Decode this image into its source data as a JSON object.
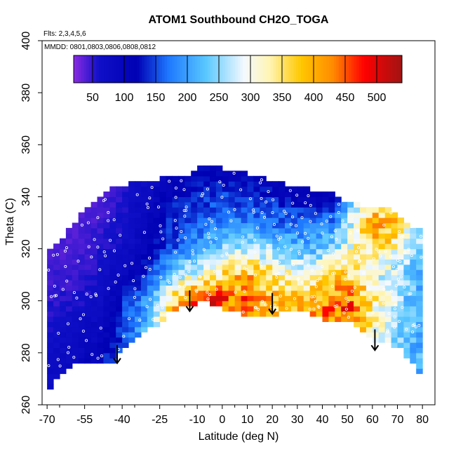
{
  "chart_data": {
    "type": "heatmap",
    "title": "ATOM1 Southbound CH2O_TOGA",
    "annotations": [
      "Flts: 2,3,4,5,6",
      "MMDD: 0801,0803,0806,0808,0812"
    ],
    "xlabel": "Latitude (deg N)",
    "ylabel": "Theta (C)",
    "xlim": [
      -72,
      85
    ],
    "ylim": [
      260,
      400
    ],
    "x_ticks": [
      -70,
      -55,
      -40,
      -25,
      -10,
      0,
      10,
      20,
      30,
      40,
      50,
      60,
      70,
      80
    ],
    "x_tick_labels": [
      "-70",
      "-55",
      "-40",
      "-25",
      "-10",
      "0",
      "10",
      "20",
      "30",
      "40",
      "50",
      "60",
      "70",
      "80"
    ],
    "y_ticks": [
      260,
      280,
      300,
      320,
      340,
      360,
      380,
      400
    ],
    "y_tick_labels": [
      "260",
      "280",
      "300",
      "320",
      "340",
      "360",
      "380",
      "400"
    ],
    "colorbar": {
      "range": [
        20,
        540
      ],
      "ticks": [
        50,
        100,
        150,
        200,
        250,
        300,
        350,
        400,
        450,
        500
      ],
      "tick_labels": [
        "50",
        "100",
        "150",
        "200",
        "250",
        "300",
        "350",
        "400",
        "450",
        "500"
      ],
      "stops": [
        {
          "value": 20,
          "color": "#8a2be2"
        },
        {
          "value": 60,
          "color": "#1010c8"
        },
        {
          "value": 120,
          "color": "#0000b4"
        },
        {
          "value": 170,
          "color": "#1e78ff"
        },
        {
          "value": 230,
          "color": "#5ac8ff"
        },
        {
          "value": 290,
          "color": "#f4f9ff"
        },
        {
          "value": 330,
          "color": "#fff5b4"
        },
        {
          "value": 380,
          "color": "#ffc800"
        },
        {
          "value": 430,
          "color": "#ff8c00"
        },
        {
          "value": 480,
          "color": "#ff0000"
        },
        {
          "value": 540,
          "color": "#a01414"
        }
      ]
    },
    "field": {
      "lat": [
        -70,
        -65,
        -60,
        -55,
        -50,
        -45,
        -40,
        -35,
        -30,
        -25,
        -20,
        -15,
        -10,
        -5,
        0,
        5,
        10,
        15,
        20,
        25,
        30,
        35,
        40,
        45,
        50,
        55,
        60,
        65,
        70,
        75,
        80
      ],
      "theta_bottom": [
        265,
        272,
        276,
        278,
        276,
        276,
        282,
        286,
        289,
        292,
        297,
        298,
        300,
        300,
        298,
        296,
        295,
        295,
        295,
        296,
        296,
        296,
        294,
        292,
        293,
        290,
        285,
        285,
        283,
        278,
        272
      ],
      "theta_top": [
        318,
        322,
        328,
        334,
        338,
        342,
        343,
        345,
        346,
        346,
        347,
        347,
        350,
        351,
        350,
        349,
        348,
        347,
        345,
        344,
        343,
        342,
        341,
        340,
        337,
        336,
        335,
        335,
        333,
        328,
        326
      ],
      "theta_levels": [
        270,
        280,
        290,
        300,
        310,
        320,
        330,
        340,
        350
      ],
      "values": [
        [
          80,
          70,
          60,
          50,
          45,
          40,
          40,
          40,
          40
        ],
        [
          80,
          75,
          65,
          55,
          45,
          40,
          40,
          40,
          40
        ],
        [
          90,
          80,
          70,
          55,
          45,
          40,
          35,
          35,
          35
        ],
        [
          100,
          90,
          80,
          60,
          50,
          45,
          40,
          35,
          35
        ],
        [
          120,
          100,
          90,
          70,
          60,
          55,
          45,
          40,
          40
        ],
        [
          150,
          130,
          110,
          90,
          70,
          60,
          50,
          45,
          40
        ],
        [
          170,
          160,
          140,
          130,
          90,
          70,
          60,
          55,
          50
        ],
        [
          200,
          190,
          180,
          170,
          110,
          80,
          80,
          70,
          60
        ],
        [
          220,
          230,
          220,
          200,
          150,
          100,
          90,
          80,
          70
        ],
        [
          260,
          280,
          300,
          270,
          180,
          130,
          120,
          100,
          80
        ],
        [
          320,
          360,
          380,
          360,
          240,
          150,
          140,
          120,
          100
        ],
        [
          340,
          380,
          440,
          420,
          280,
          170,
          150,
          120,
          100
        ],
        [
          340,
          400,
          470,
          460,
          300,
          190,
          170,
          130,
          110
        ],
        [
          330,
          390,
          470,
          470,
          310,
          220,
          170,
          140,
          110
        ],
        [
          310,
          380,
          450,
          450,
          360,
          250,
          170,
          150,
          110
        ],
        [
          310,
          370,
          440,
          450,
          380,
          270,
          180,
          140,
          110
        ],
        [
          310,
          360,
          410,
          430,
          390,
          280,
          170,
          140,
          100
        ],
        [
          300,
          350,
          390,
          400,
          380,
          260,
          170,
          130,
          100
        ],
        [
          300,
          340,
          370,
          380,
          360,
          250,
          160,
          130,
          100
        ],
        [
          300,
          330,
          360,
          370,
          330,
          230,
          170,
          120,
          100
        ],
        [
          300,
          330,
          360,
          370,
          310,
          220,
          170,
          110,
          90
        ],
        [
          300,
          340,
          380,
          390,
          310,
          220,
          160,
          100,
          90
        ],
        [
          300,
          350,
          410,
          420,
          330,
          240,
          170,
          110,
          90
        ],
        [
          310,
          370,
          440,
          450,
          360,
          260,
          180,
          120,
          100
        ],
        [
          310,
          380,
          450,
          440,
          370,
          300,
          260,
          200,
          140
        ],
        [
          300,
          340,
          400,
          410,
          330,
          320,
          340,
          280,
          200
        ],
        [
          280,
          300,
          320,
          340,
          300,
          360,
          420,
          300,
          220
        ],
        [
          250,
          270,
          290,
          300,
          280,
          340,
          400,
          280,
          210
        ],
        [
          230,
          250,
          260,
          260,
          260,
          300,
          380,
          260,
          200
        ],
        [
          210,
          220,
          230,
          230,
          240,
          260,
          300,
          240,
          190
        ],
        [
          200,
          210,
          210,
          210,
          220,
          240,
          260,
          220,
          180
        ]
      ]
    },
    "markers": [
      {
        "type": "arrow-down",
        "x": -42,
        "y_top": 283,
        "y_bottom": 276
      },
      {
        "type": "arrow-down",
        "x": -13,
        "y_top": 304,
        "y_bottom": 296
      },
      {
        "type": "arrow-down",
        "x": 20,
        "y_top": 303,
        "y_bottom": 295
      },
      {
        "type": "arrow-down",
        "x": 61,
        "y_top": 289,
        "y_bottom": 281
      }
    ]
  }
}
